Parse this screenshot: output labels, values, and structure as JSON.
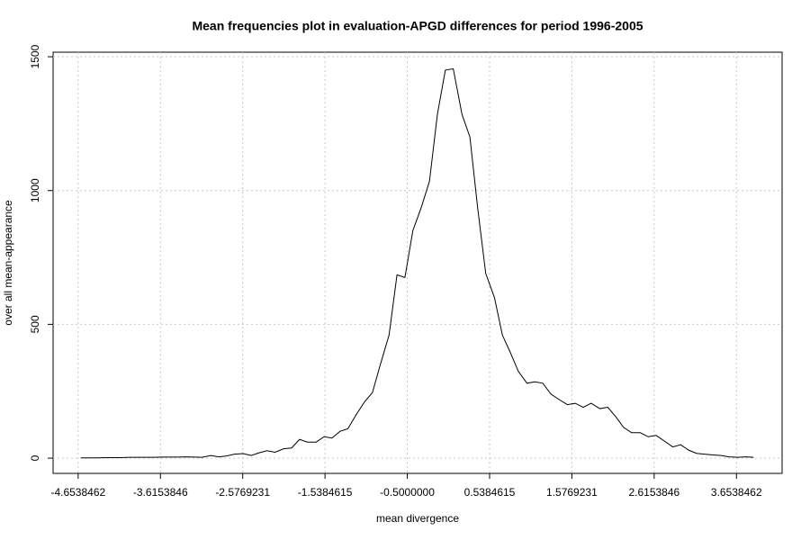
{
  "chart_data": {
    "type": "line",
    "title": "Mean frequencies plot in evaluation-APGD differences for period 1996-2005",
    "x_label": "mean divergence",
    "y_label": "over all mean-appearance",
    "x": [
      -4.62,
      -4.52,
      -4.42,
      -4.31,
      -4.21,
      -4.11,
      -4.01,
      -3.9,
      -3.8,
      -3.7,
      -3.6,
      -3.49,
      -3.39,
      -3.29,
      -3.19,
      -3.09,
      -2.98,
      -2.88,
      -2.78,
      -2.68,
      -2.57,
      -2.47,
      -2.37,
      -2.27,
      -2.17,
      -2.06,
      -1.96,
      -1.86,
      -1.76,
      -1.65,
      -1.55,
      -1.45,
      -1.35,
      -1.25,
      -1.14,
      -1.04,
      -0.94,
      -0.84,
      -0.73,
      -0.63,
      -0.53,
      -0.43,
      -0.32,
      -0.22,
      -0.12,
      -0.02,
      0.08,
      0.19,
      0.29,
      0.39,
      0.49,
      0.6,
      0.7,
      0.8,
      0.9,
      1.01,
      1.11,
      1.21,
      1.31,
      1.41,
      1.52,
      1.62,
      1.72,
      1.82,
      1.93,
      2.03,
      2.13,
      2.23,
      2.33,
      2.44,
      2.54,
      2.64,
      2.74,
      2.85,
      2.95,
      3.05,
      3.15,
      3.25,
      3.36,
      3.46,
      3.56,
      3.67,
      3.77,
      3.87
    ],
    "series": [
      {
        "color": "#000000",
        "values": [
          1,
          1,
          1,
          2,
          2,
          2,
          3,
          3,
          3,
          3,
          4,
          4,
          4,
          5,
          4,
          3,
          10,
          5,
          8,
          15,
          17,
          10,
          20,
          28,
          22,
          35,
          38,
          70,
          60,
          60,
          80,
          75,
          100,
          110,
          165,
          210,
          245,
          350,
          460,
          685,
          675,
          850,
          940,
          1035,
          1285,
          1450,
          1455,
          1285,
          1200,
          930,
          690,
          600,
          460,
          395,
          325,
          280,
          285,
          280,
          240,
          220,
          200,
          205,
          190,
          205,
          185,
          190,
          155,
          115,
          95,
          95,
          80,
          85,
          65,
          42,
          50,
          30,
          18,
          15,
          12,
          10,
          5,
          3,
          5,
          3
        ]
      }
    ],
    "xlim": [
      -4.97,
      4.23
    ],
    "ylim": [
      -57,
      1517
    ],
    "xticks": [
      -4.6538462,
      -3.6153846,
      -2.5769231,
      -1.5384615,
      {
        "value": -0.5,
        "label": "-0.5000000"
      },
      0.5384615,
      1.5769231,
      2.6153846,
      3.6538462
    ],
    "yticks": [
      0,
      500,
      1000,
      1500
    ],
    "grid": true
  }
}
